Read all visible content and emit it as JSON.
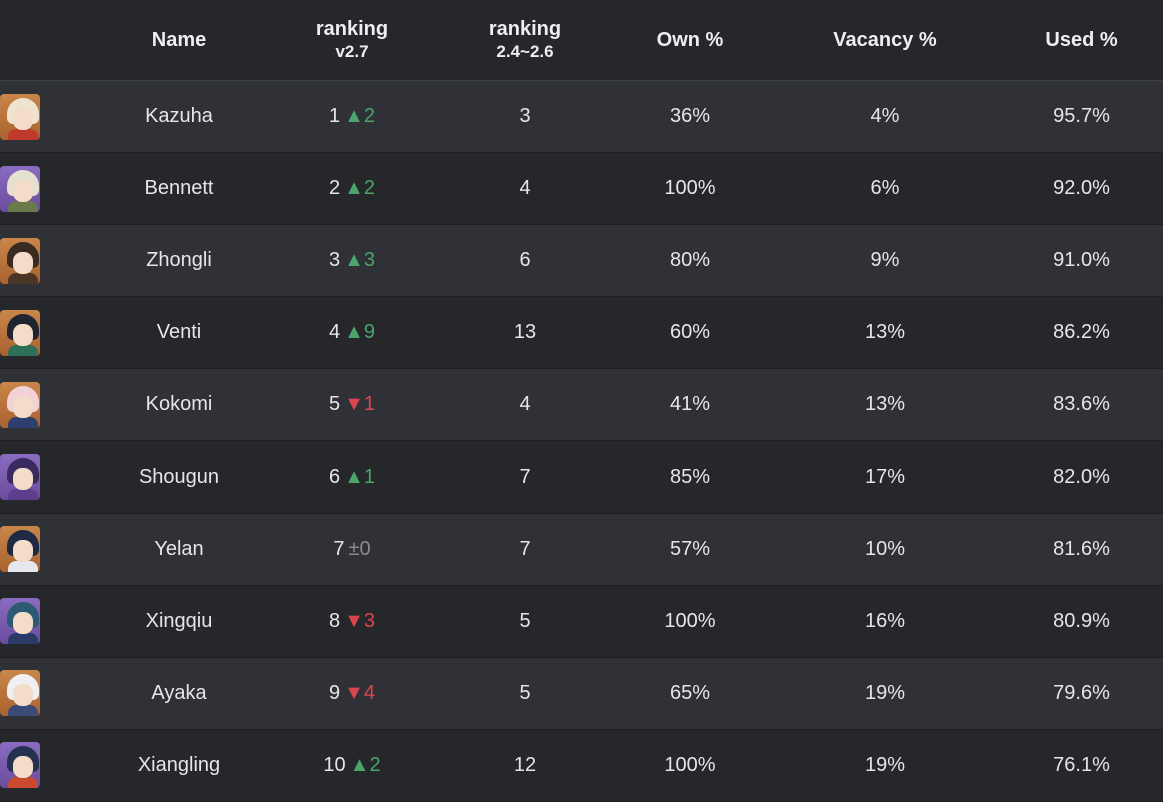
{
  "header": {
    "name": "Name",
    "rank_v27_line1": "ranking",
    "rank_v27_line2": "v2.7",
    "rank_prev_line1": "ranking",
    "rank_prev_line2": "2.4~2.6",
    "own": "Own %",
    "vacancy": "Vacancy %",
    "used": "Used %"
  },
  "colors": {
    "up": "#4aa56a",
    "down": "#d9464f",
    "same": "#8a8c92"
  },
  "rows": [
    {
      "avatar": "kazuha-avatar",
      "avatar_bg": "orange",
      "hair": "#efe2cf",
      "outfit": "#c0392b",
      "name": "Kazuha",
      "rank": "1",
      "delta": "▲2",
      "trend": "up",
      "prev": "3",
      "own": "36%",
      "vacancy": "4%",
      "used": "95.7%"
    },
    {
      "avatar": "bennett-avatar",
      "avatar_bg": "purple",
      "hair": "#e6e0cf",
      "outfit": "#6b7a4a",
      "name": "Bennett",
      "rank": "2",
      "delta": "▲2",
      "trend": "up",
      "prev": "4",
      "own": "100%",
      "vacancy": "6%",
      "used": "92.0%"
    },
    {
      "avatar": "zhongli-avatar",
      "avatar_bg": "orange",
      "hair": "#3a2a22",
      "outfit": "#4a3526",
      "name": "Zhongli",
      "rank": "3",
      "delta": "▲3",
      "trend": "up",
      "prev": "6",
      "own": "80%",
      "vacancy": "9%",
      "used": "91.0%"
    },
    {
      "avatar": "venti-avatar",
      "avatar_bg": "orange",
      "hair": "#1f2430",
      "outfit": "#2e6f5a",
      "name": "Venti",
      "rank": "4",
      "delta": "▲9",
      "trend": "up",
      "prev": "13",
      "own": "60%",
      "vacancy": "13%",
      "used": "86.2%"
    },
    {
      "avatar": "kokomi-avatar",
      "avatar_bg": "orange",
      "hair": "#f2d2d6",
      "outfit": "#2d3f6e",
      "name": "Kokomi",
      "rank": "5",
      "delta": "▼1",
      "trend": "down",
      "prev": "4",
      "own": "41%",
      "vacancy": "13%",
      "used": "83.6%"
    },
    {
      "avatar": "shougun-avatar",
      "avatar_bg": "purple",
      "hair": "#3b2a60",
      "outfit": "#5b3f8c",
      "name": "Shougun",
      "rank": "6",
      "delta": "▲1",
      "trend": "up",
      "prev": "7",
      "own": "85%",
      "vacancy": "17%",
      "used": "82.0%"
    },
    {
      "avatar": "yelan-avatar",
      "avatar_bg": "orange",
      "hair": "#1e2a44",
      "outfit": "#e7e7ee",
      "name": "Yelan",
      "rank": "7",
      "delta": "±0",
      "trend": "same",
      "prev": "7",
      "own": "57%",
      "vacancy": "10%",
      "used": "81.6%"
    },
    {
      "avatar": "xingqiu-avatar",
      "avatar_bg": "purple",
      "hair": "#2b5a73",
      "outfit": "#2a3a66",
      "name": "Xingqiu",
      "rank": "8",
      "delta": "▼3",
      "trend": "down",
      "prev": "5",
      "own": "100%",
      "vacancy": "16%",
      "used": "80.9%"
    },
    {
      "avatar": "ayaka-avatar",
      "avatar_bg": "orange",
      "hair": "#eef0f4",
      "outfit": "#3c4a78",
      "name": "Ayaka",
      "rank": "9",
      "delta": "▼4",
      "trend": "down",
      "prev": "5",
      "own": "65%",
      "vacancy": "19%",
      "used": "79.6%"
    },
    {
      "avatar": "xiangling-avatar",
      "avatar_bg": "purple",
      "hair": "#24324f",
      "outfit": "#c94a2f",
      "name": "Xiangling",
      "rank": "10",
      "delta": "▲2",
      "trend": "up",
      "prev": "12",
      "own": "100%",
      "vacancy": "19%",
      "used": "76.1%"
    }
  ]
}
